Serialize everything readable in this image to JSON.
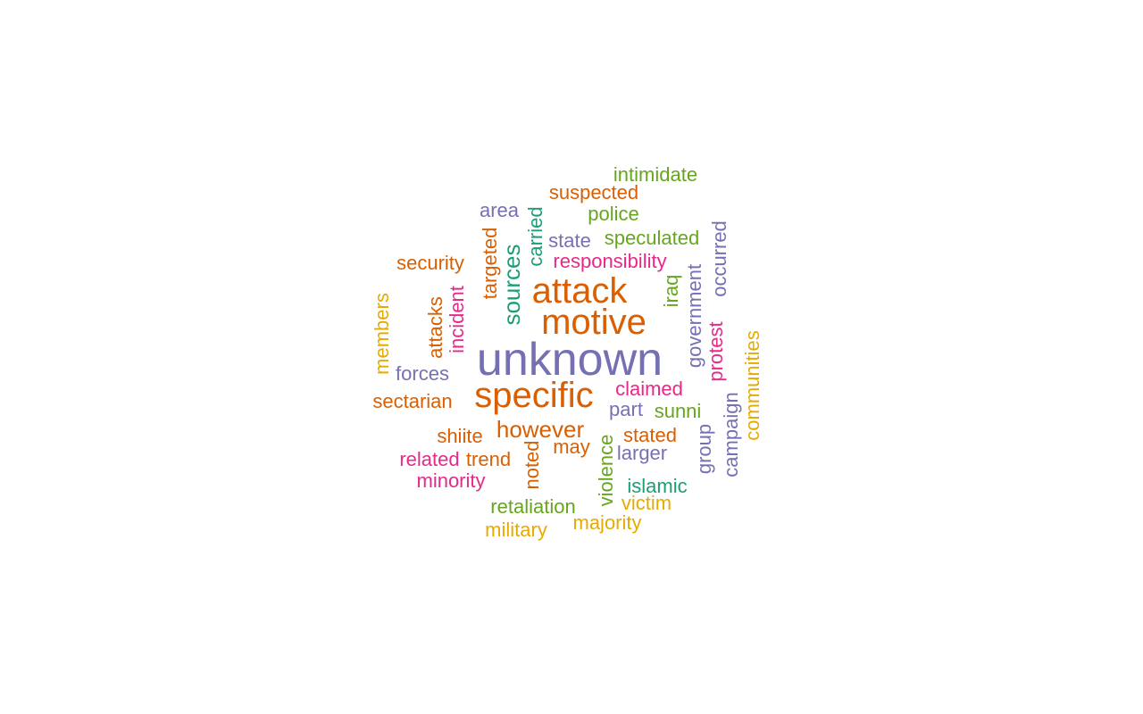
{
  "colors": {
    "teal": "#1b9e77",
    "orange": "#d95f02",
    "purple": "#7570b3",
    "pink": "#e7298a",
    "green": "#66a61e",
    "gold": "#e6ab02"
  },
  "words": [
    {
      "text": "unknown",
      "color": "purple"
    },
    {
      "text": "specific",
      "color": "orange"
    },
    {
      "text": "motive",
      "color": "orange"
    },
    {
      "text": "attack",
      "color": "orange"
    },
    {
      "text": "however",
      "color": "orange"
    },
    {
      "text": "sources",
      "color": "teal"
    },
    {
      "text": "claimed",
      "color": "pink"
    },
    {
      "text": "responsibility",
      "color": "pink"
    },
    {
      "text": "speculated",
      "color": "green"
    },
    {
      "text": "suspected",
      "color": "orange"
    },
    {
      "text": "intimidate",
      "color": "green"
    },
    {
      "text": "police",
      "color": "green"
    },
    {
      "text": "area",
      "color": "purple"
    },
    {
      "text": "state",
      "color": "purple"
    },
    {
      "text": "carried",
      "color": "teal"
    },
    {
      "text": "targeted",
      "color": "orange"
    },
    {
      "text": "security",
      "color": "orange"
    },
    {
      "text": "incident",
      "color": "pink"
    },
    {
      "text": "attacks",
      "color": "orange"
    },
    {
      "text": "members",
      "color": "gold"
    },
    {
      "text": "forces",
      "color": "purple"
    },
    {
      "text": "sectarian",
      "color": "orange"
    },
    {
      "text": "iraq",
      "color": "green"
    },
    {
      "text": "government",
      "color": "purple"
    },
    {
      "text": "occurred",
      "color": "purple"
    },
    {
      "text": "protest",
      "color": "pink"
    },
    {
      "text": "communities",
      "color": "gold"
    },
    {
      "text": "campaign",
      "color": "purple"
    },
    {
      "text": "group",
      "color": "purple"
    },
    {
      "text": "part",
      "color": "purple"
    },
    {
      "text": "sunni",
      "color": "green"
    },
    {
      "text": "stated",
      "color": "orange"
    },
    {
      "text": "may",
      "color": "orange"
    },
    {
      "text": "shiite",
      "color": "orange"
    },
    {
      "text": "related",
      "color": "pink"
    },
    {
      "text": "trend",
      "color": "orange"
    },
    {
      "text": "minority",
      "color": "pink"
    },
    {
      "text": "noted",
      "color": "orange"
    },
    {
      "text": "violence",
      "color": "green"
    },
    {
      "text": "larger",
      "color": "purple"
    },
    {
      "text": "islamic",
      "color": "teal"
    },
    {
      "text": "victim",
      "color": "gold"
    },
    {
      "text": "retaliation",
      "color": "green"
    },
    {
      "text": "majority",
      "color": "gold"
    },
    {
      "text": "military",
      "color": "gold"
    }
  ]
}
